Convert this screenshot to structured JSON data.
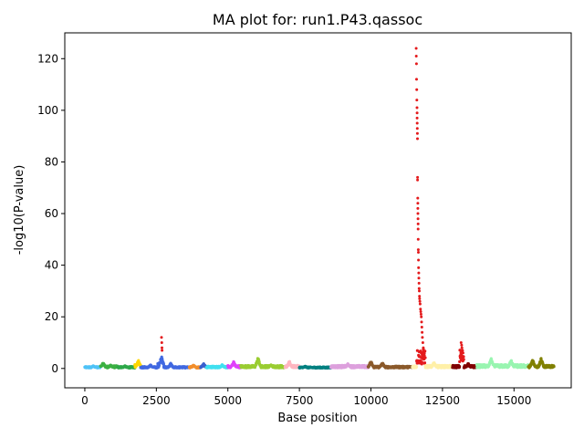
{
  "chart_data": {
    "type": "scatter",
    "title": "MA plot for: run1.P43.qassoc",
    "xlabel": "Base position",
    "ylabel": "-log10(P-value)",
    "xlim": [
      -700,
      17000
    ],
    "ylim": [
      -7.5,
      130
    ],
    "xticks": [
      0,
      2500,
      5000,
      7500,
      10000,
      12500,
      15000
    ],
    "yticks": [
      0,
      20,
      40,
      60,
      80,
      100,
      120
    ],
    "grid": false,
    "legend": "none",
    "segments": [
      {
        "x": [
          0,
          550
        ],
        "color": "#4fc3f7",
        "base": 0.5,
        "peaks": [
          [
            300,
            1.2
          ]
        ]
      },
      {
        "x": [
          550,
          1150
        ],
        "color": "#3cb043",
        "base": 0.7,
        "peaks": [
          [
            640,
            2.5
          ],
          [
            900,
            1.5
          ]
        ]
      },
      {
        "x": [
          1150,
          1750
        ],
        "color": "#2ea84a",
        "base": 0.5,
        "peaks": [
          [
            1400,
            1.2
          ]
        ]
      },
      {
        "x": [
          1750,
          1950
        ],
        "color": "#ffd700",
        "base": 1.0,
        "peaks": [
          [
            1870,
            3.5
          ]
        ]
      },
      {
        "x": [
          1950,
          2550
        ],
        "color": "#4169e1",
        "base": 0.5,
        "peaks": [
          [
            2300,
            1.5
          ]
        ]
      },
      {
        "x": [
          2550,
          2760
        ],
        "color": "#4169e1",
        "base": 1.5,
        "peaks": [
          [
            2680,
            5.0
          ]
        ]
      },
      {
        "x": [
          2760,
          3600
        ],
        "color": "#4169e1",
        "base": 0.5,
        "peaks": [
          [
            3000,
            2.0
          ]
        ]
      },
      {
        "x": [
          3650,
          4050
        ],
        "color": "#f28e2b",
        "base": 0.5,
        "peaks": [
          [
            3800,
            1.5
          ]
        ]
      },
      {
        "x": [
          4050,
          4250
        ],
        "color": "#3a5fcd",
        "base": 0.7,
        "peaks": [
          [
            4150,
            2.0
          ]
        ]
      },
      {
        "x": [
          4250,
          5000
        ],
        "color": "#40e0f0",
        "base": 0.6,
        "peaks": [
          [
            4800,
            1.5
          ]
        ]
      },
      {
        "x": [
          5000,
          5450
        ],
        "color": "#e040fb",
        "base": 0.8,
        "peaks": [
          [
            5200,
            2.8
          ]
        ]
      },
      {
        "x": [
          5450,
          7000
        ],
        "color": "#9acd32",
        "base": 0.8,
        "peaks": [
          [
            6050,
            4.5
          ],
          [
            6500,
            1.5
          ]
        ]
      },
      {
        "x": [
          7000,
          7500
        ],
        "color": "#ffb6c1",
        "base": 0.8,
        "peaks": [
          [
            7150,
            3.0
          ]
        ]
      },
      {
        "x": [
          7500,
          8600
        ],
        "color": "#008080",
        "base": 0.4,
        "peaks": [
          [
            7700,
            1.0
          ]
        ]
      },
      {
        "x": [
          8600,
          9900
        ],
        "color": "#dda0dd",
        "base": 0.8,
        "peaks": [
          [
            9200,
            2.0
          ]
        ]
      },
      {
        "x": [
          9900,
          11450
        ],
        "color": "#8b5a2b",
        "base": 0.6,
        "peaks": [
          [
            10000,
            3.0
          ],
          [
            10400,
            2.5
          ]
        ]
      },
      {
        "x": [
          11450,
          11600
        ],
        "color": "#fff2b0",
        "base": 0.8,
        "peaks": []
      },
      {
        "x": [
          11600,
          11900
        ],
        "color": "#e41a1c",
        "base": 5.0,
        "peaks": []
      },
      {
        "x": [
          11900,
          12850
        ],
        "color": "#fff0a8",
        "base": 0.8,
        "peaks": [
          [
            12200,
            2.5
          ]
        ]
      },
      {
        "x": [
          12850,
          13100
        ],
        "color": "#800000",
        "base": 0.8,
        "peaks": []
      },
      {
        "x": [
          13100,
          13250
        ],
        "color": "#e41a1c",
        "base": 5.0,
        "peaks": []
      },
      {
        "x": [
          13250,
          13700
        ],
        "color": "#800000",
        "base": 0.8,
        "peaks": [
          [
            13400,
            2.0
          ]
        ]
      },
      {
        "x": [
          13700,
          15500
        ],
        "color": "#98f5b0",
        "base": 1.0,
        "peaks": [
          [
            14200,
            4.0
          ],
          [
            14900,
            3.5
          ]
        ]
      },
      {
        "x": [
          15500,
          16400
        ],
        "color": "#808000",
        "base": 0.8,
        "peaks": [
          [
            15650,
            3.5
          ],
          [
            15950,
            4.0
          ]
        ]
      }
    ],
    "highlight_points": [
      {
        "x": 11580,
        "y": 124
      },
      {
        "x": 11585,
        "y": 121
      },
      {
        "x": 11590,
        "y": 118
      },
      {
        "x": 11595,
        "y": 112
      },
      {
        "x": 11600,
        "y": 108
      },
      {
        "x": 11605,
        "y": 104
      },
      {
        "x": 11610,
        "y": 101
      },
      {
        "x": 11612,
        "y": 99
      },
      {
        "x": 11615,
        "y": 97
      },
      {
        "x": 11618,
        "y": 95
      },
      {
        "x": 11620,
        "y": 93
      },
      {
        "x": 11622,
        "y": 91
      },
      {
        "x": 11625,
        "y": 89
      },
      {
        "x": 11628,
        "y": 74
      },
      {
        "x": 11630,
        "y": 73
      },
      {
        "x": 11635,
        "y": 66
      },
      {
        "x": 11638,
        "y": 64
      },
      {
        "x": 11640,
        "y": 62
      },
      {
        "x": 11642,
        "y": 60
      },
      {
        "x": 11645,
        "y": 58
      },
      {
        "x": 11648,
        "y": 56
      },
      {
        "x": 11650,
        "y": 54
      },
      {
        "x": 11652,
        "y": 50
      },
      {
        "x": 11655,
        "y": 46
      },
      {
        "x": 11658,
        "y": 45
      },
      {
        "x": 11662,
        "y": 42
      },
      {
        "x": 11666,
        "y": 39
      },
      {
        "x": 11670,
        "y": 37
      },
      {
        "x": 11675,
        "y": 35
      },
      {
        "x": 11680,
        "y": 33
      },
      {
        "x": 11685,
        "y": 31
      },
      {
        "x": 11690,
        "y": 30
      },
      {
        "x": 11695,
        "y": 28
      },
      {
        "x": 11700,
        "y": 27
      },
      {
        "x": 11710,
        "y": 26
      },
      {
        "x": 11720,
        "y": 25
      },
      {
        "x": 11730,
        "y": 23
      },
      {
        "x": 11740,
        "y": 22
      },
      {
        "x": 11750,
        "y": 21
      },
      {
        "x": 11760,
        "y": 20
      },
      {
        "x": 11770,
        "y": 18
      },
      {
        "x": 11780,
        "y": 16
      },
      {
        "x": 11790,
        "y": 14
      },
      {
        "x": 11800,
        "y": 12
      },
      {
        "x": 11815,
        "y": 10
      },
      {
        "x": 11830,
        "y": 8
      },
      {
        "x": 11850,
        "y": 6
      },
      {
        "x": 11870,
        "y": 5
      },
      {
        "x": 2680,
        "y": 12
      },
      {
        "x": 2690,
        "y": 10
      },
      {
        "x": 2695,
        "y": 8
      },
      {
        "x": 2700,
        "y": 7
      },
      {
        "x": 13150,
        "y": 10
      },
      {
        "x": 13170,
        "y": 9
      },
      {
        "x": 13180,
        "y": 8
      },
      {
        "x": 13200,
        "y": 7
      },
      {
        "x": 13220,
        "y": 6
      }
    ],
    "highlight_color": "#e41a1c"
  }
}
